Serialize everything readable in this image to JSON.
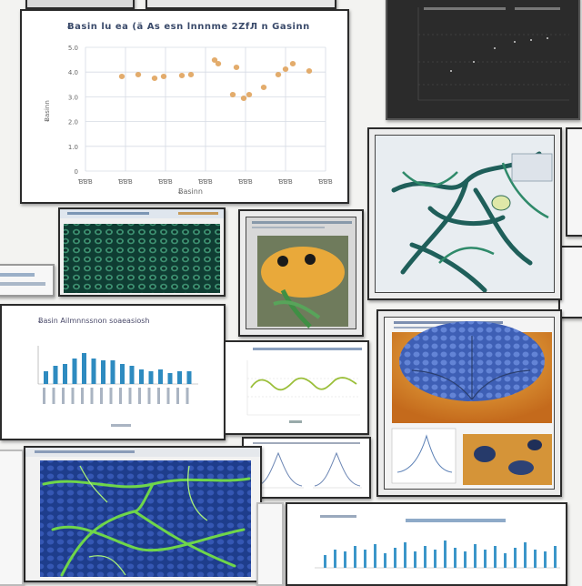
{
  "collage": {
    "main_chart": {
      "title": "Ƀasin lu ea (ä As esn lnnnme 2ZfЛ n Gasinn",
      "xlabel": "Ƀasinn",
      "ylabel": "Ƀasinn",
      "x_ticks": [
        "ƁƁƁ",
        "ƁƁƁ",
        "ƁƁƁ",
        "ƁƁƁ",
        "ƁƁƁ",
        "ƁƁƁ",
        "ƁƁƁ"
      ],
      "y_ticks": [
        "5.0",
        "4.0",
        "3.0",
        "2.0",
        "1.0",
        "0"
      ],
      "point_color": "#e0a35c"
    },
    "bar_chart_left": {
      "title": "Ƀasin  Ailmnnssnon soaeasiosh",
      "bar_color": "#2e8bc0"
    },
    "bar_chart_bottom": {
      "bar_color": "#3b96c9"
    },
    "wave_chart": {
      "line_color": "#9bbf3a"
    }
  }
}
